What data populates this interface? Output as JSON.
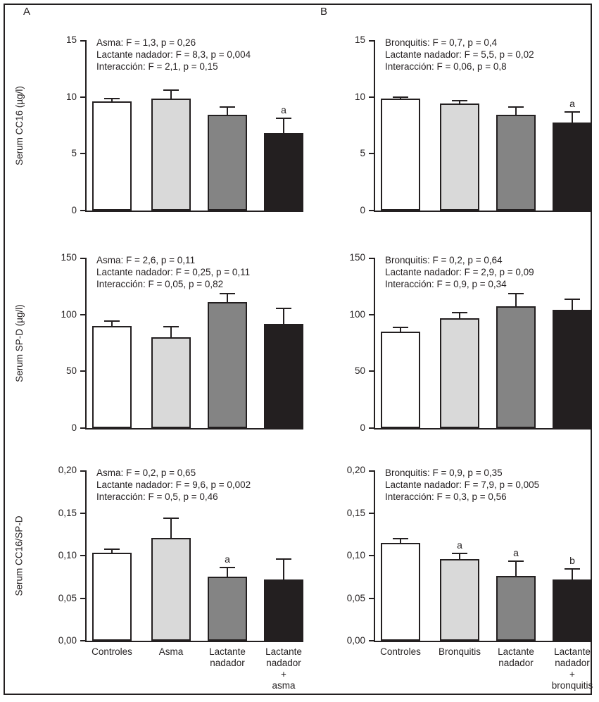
{
  "figure": {
    "panel_a_label": "A",
    "panel_b_label": "B",
    "bar_colors": [
      "#ffffff",
      "#d9d9d9",
      "#848484",
      "#231f20"
    ],
    "axis_color": "#231f20",
    "background_color": "#ffffff"
  },
  "chart_data": [
    {
      "type": "bar",
      "panel": "A",
      "row": 1,
      "ylabel": "Serum CC16 (µg/l)",
      "ylim": [
        0,
        15
      ],
      "yticks": [
        0,
        5,
        10,
        15
      ],
      "ytick_labels": [
        "0",
        "5",
        "10",
        "15"
      ],
      "annotation_lines": [
        "Asma: F = 1,3, p = 0,26",
        "Lactante nadador: F = 8,3, p = 0,004",
        "Interacción: F = 2,1, p = 0,15"
      ],
      "categories": [
        "Controles",
        "Asma",
        "Lactante\nnadador",
        "Lactante\nnadador\n+\nasma"
      ],
      "show_categories": false,
      "values": [
        9.6,
        9.85,
        8.4,
        6.8
      ],
      "errors": [
        0.3,
        0.8,
        0.75,
        1.4
      ],
      "sig_letters": [
        "",
        "",
        "",
        "a"
      ]
    },
    {
      "type": "bar",
      "panel": "B",
      "row": 1,
      "ylabel": "",
      "ylim": [
        0,
        15
      ],
      "yticks": [
        0,
        5,
        10,
        15
      ],
      "ytick_labels": [
        "0",
        "5",
        "10",
        "15"
      ],
      "annotation_lines": [
        "Bronquitis: F = 0,7, p = 0,4",
        "Lactante nadador: F = 5,5, p = 0,02",
        "Interacción: F = 0,06, p = 0,8"
      ],
      "categories": [
        "Controles",
        "Bronquitis",
        "Lactante\nnadador",
        "Lactante\nnadador\n+\nbronquitis"
      ],
      "show_categories": false,
      "values": [
        9.85,
        9.4,
        8.4,
        7.75
      ],
      "errors": [
        0.2,
        0.35,
        0.75,
        1.0
      ],
      "sig_letters": [
        "",
        "",
        "",
        "a"
      ]
    },
    {
      "type": "bar",
      "panel": "A",
      "row": 2,
      "ylabel": "Serum SP-D (µg/l)",
      "ylim": [
        0,
        150
      ],
      "yticks": [
        0,
        50,
        100,
        150
      ],
      "ytick_labels": [
        "0",
        "50",
        "100",
        "150"
      ],
      "annotation_lines": [
        "Asma: F = 2,6, p = 0,11",
        "Lactante nadador: F = 0,25, p = 0,11",
        "Interacción: F = 0,05, p = 0,82"
      ],
      "categories": [
        "Controles",
        "Asma",
        "Lactante\nnadador",
        "Lactante\nnadador\n+\nasma"
      ],
      "show_categories": false,
      "values": [
        90,
        80,
        111,
        92
      ],
      "errors": [
        5,
        10,
        8,
        14
      ],
      "sig_letters": [
        "",
        "",
        "",
        ""
      ]
    },
    {
      "type": "bar",
      "panel": "B",
      "row": 2,
      "ylabel": "",
      "ylim": [
        0,
        150
      ],
      "yticks": [
        0,
        50,
        100,
        150
      ],
      "ytick_labels": [
        "0",
        "50",
        "100",
        "150"
      ],
      "annotation_lines": [
        "Bronquitis: F = 0,2, p = 0,64",
        "Lactante nadador: F = 2,9, p = 0,09",
        "Interacción: F = 0,9, p = 0,34"
      ],
      "categories": [
        "Controles",
        "Bronquitis",
        "Lactante\nnadador",
        "Lactante\nnadador\n+\nbronquitis"
      ],
      "show_categories": false,
      "values": [
        85,
        97,
        107,
        104
      ],
      "errors": [
        4,
        5,
        12,
        10
      ],
      "sig_letters": [
        "",
        "",
        "",
        ""
      ]
    },
    {
      "type": "bar",
      "panel": "A",
      "row": 3,
      "ylabel": "Serum CC16/SP-D",
      "ylim": [
        0,
        0.2
      ],
      "yticks": [
        0,
        0.05,
        0.1,
        0.15,
        0.2
      ],
      "ytick_labels": [
        "0,00",
        "0,05",
        "0,10",
        "0,15",
        "0,20"
      ],
      "annotation_lines": [
        "Asma: F = 0,2, p = 0,65",
        "Lactante nadador: F = 9,6, p = 0,002",
        "Interacción: F = 0,5, p = 0,46"
      ],
      "categories": [
        "Controles",
        "Asma",
        "Lactante\nnadador",
        "Lactante\nnadador\n+\nasma"
      ],
      "show_categories": true,
      "values": [
        0.103,
        0.121,
        0.075,
        0.072
      ],
      "errors": [
        0.005,
        0.024,
        0.012,
        0.025
      ],
      "sig_letters": [
        "",
        "",
        "a",
        ""
      ]
    },
    {
      "type": "bar",
      "panel": "B",
      "row": 3,
      "ylabel": "",
      "ylim": [
        0,
        0.2
      ],
      "yticks": [
        0,
        0.05,
        0.1,
        0.15,
        0.2
      ],
      "ytick_labels": [
        "0,00",
        "0,05",
        "0,10",
        "0,15",
        "0,20"
      ],
      "annotation_lines": [
        "Bronquitis: F = 0,9, p = 0,35",
        "Lactante nadador: F = 7,9, p = 0,005",
        "Interacción: F = 0,3, p = 0,56"
      ],
      "categories": [
        "Controles",
        "Bronquitis",
        "Lactante\nnadador",
        "Lactante\nnadador\n+\nbronquitis"
      ],
      "show_categories": true,
      "values": [
        0.115,
        0.096,
        0.076,
        0.072
      ],
      "errors": [
        0.006,
        0.007,
        0.018,
        0.013
      ],
      "sig_letters": [
        "",
        "a",
        "a",
        "b"
      ]
    }
  ]
}
